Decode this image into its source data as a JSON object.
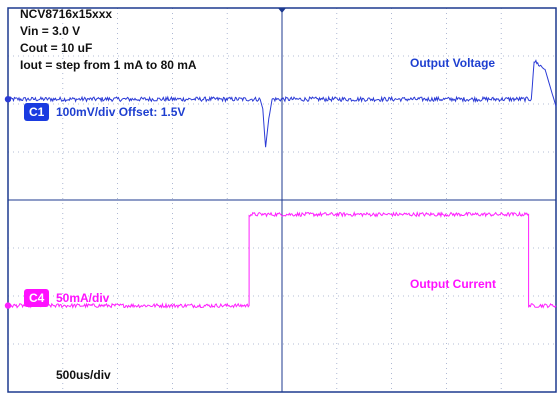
{
  "annotations": {
    "device": "NCV8716x15xxx",
    "vin": "Vin = 3.0 V",
    "cout": "Cout = 10 uF",
    "iout": "Iout = step from 1 mA to 80 mA"
  },
  "timebase": "500us/div",
  "colors": {
    "grid_frame": "#1d3a8f",
    "grid_lines": "#9aa6c8",
    "voltage_trace": "#2b3bd6",
    "current_trace": "#ff20ff",
    "voltage_label": "#1e3fd0",
    "current_label": "#ff10ff"
  },
  "chart_data": {
    "type": "line",
    "title": "",
    "x_unit": "div",
    "xlim": [
      0,
      10
    ],
    "ylim": [
      0,
      8
    ],
    "grid": true,
    "series": [
      {
        "name": "Output Voltage",
        "channel": "C1",
        "channel_label": "C1",
        "scale_text": "100mV/div Offset: 1.5V",
        "x": [
          0,
          4.6,
          4.65,
          4.7,
          4.76,
          4.82,
          9.55,
          9.6,
          9.8,
          10
        ],
        "y_div": [
          6.1,
          6.1,
          5.9,
          5.1,
          5.7,
          6.1,
          6.1,
          6.9,
          6.72,
          5.95
        ]
      },
      {
        "name": "Output Current",
        "channel": "C4",
        "channel_label": "C4",
        "scale_text": "50mA/div",
        "x": [
          0,
          4.4,
          4.4,
          9.5,
          9.5,
          10
        ],
        "y_div": [
          1.8,
          1.8,
          3.7,
          3.7,
          1.8,
          1.8
        ]
      }
    ]
  }
}
